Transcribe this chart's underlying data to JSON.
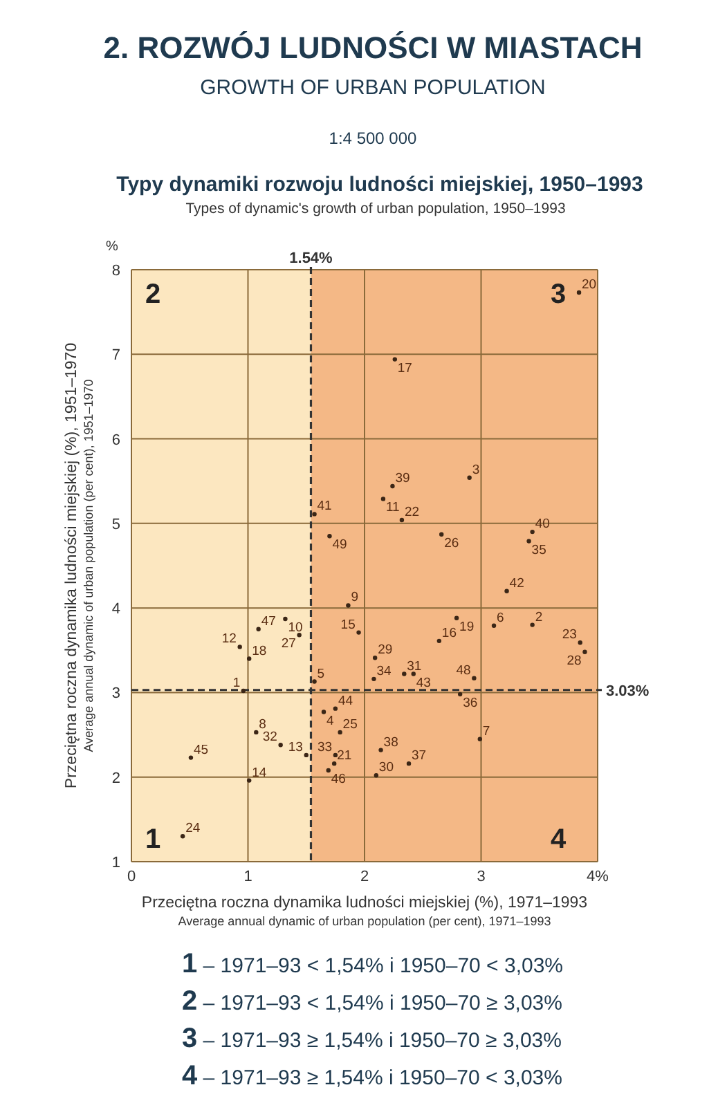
{
  "chart_data": {
    "type": "scatter",
    "title": "2. ROZWÓJ LUDNOŚCI W MIASTACH",
    "subtitle": "GROWTH OF URBAN POPULATION",
    "xlabel": "Przeciętna roczna dynamika ludności miejskiej (%), 1971–1993\nAverage annual dynamic of urban population (per cent), 1971–1993",
    "ylabel": "Przeciętna roczna dynamika ludności miejskiej (%), 1951–1970\nAverage annual dynamic of urban population (per cent), 1951–1970",
    "annotations": [
      "1:4 500 000",
      "Typy dynamiki rozwoju ludności miejskiej, 1950–1993",
      "Types of dynamic's growth of urban population, 1950–1993",
      "%",
      "1 – 1971–93 < 1,54% i 1950–70 < 3,03%",
      "2 – 1971–93 < 1,54% i 1950–70 ≥ 3,03%",
      "3 – 1971–93 ≥ 1,54% i 1950–70 ≥ 3,03%",
      "4 – 1971–93 ≥ 1,54% i 1950–70 < 3,03%",
      "1",
      "2",
      "3",
      "4"
    ],
    "color": "#3b2616",
    "marker": "circle",
    "series": [
      {
        "name": "1",
        "x": [
          0.96
        ],
        "values": [
          3.02
        ]
      },
      {
        "name": "2",
        "x": [
          3.44
        ],
        "values": [
          3.8
        ]
      },
      {
        "name": "3",
        "x": [
          2.9
        ],
        "values": [
          5.54
        ]
      },
      {
        "name": "4",
        "x": [
          1.65
        ],
        "values": [
          2.77
        ]
      },
      {
        "name": "5",
        "x": [
          1.57
        ],
        "values": [
          3.13
        ]
      },
      {
        "name": "6",
        "x": [
          3.11
        ],
        "values": [
          3.79
        ]
      },
      {
        "name": "7",
        "x": [
          2.99
        ],
        "values": [
          2.45
        ]
      },
      {
        "name": "8",
        "x": [
          1.07
        ],
        "values": [
          2.53
        ]
      },
      {
        "name": "9",
        "x": [
          1.86
        ],
        "values": [
          4.03
        ]
      },
      {
        "name": "10",
        "x": [
          1.32
        ],
        "values": [
          3.87
        ]
      },
      {
        "name": "11",
        "x": [
          2.16
        ],
        "values": [
          5.29
        ]
      },
      {
        "name": "12",
        "x": [
          0.93
        ],
        "values": [
          3.54
        ]
      },
      {
        "name": "13",
        "x": [
          1.5
        ],
        "values": [
          2.26
        ]
      },
      {
        "name": "14",
        "x": [
          1.01
        ],
        "values": [
          1.96
        ]
      },
      {
        "name": "15",
        "x": [
          1.95
        ],
        "values": [
          3.71
        ]
      },
      {
        "name": "16",
        "x": [
          2.64
        ],
        "values": [
          3.61
        ]
      },
      {
        "name": "17",
        "x": [
          2.26
        ],
        "values": [
          6.94
        ]
      },
      {
        "name": "18",
        "x": [
          1.01
        ],
        "values": [
          3.4
        ]
      },
      {
        "name": "19",
        "x": [
          2.79
        ],
        "values": [
          3.88
        ]
      },
      {
        "name": "20",
        "x": [
          3.84
        ],
        "values": [
          7.73
        ]
      },
      {
        "name": "21",
        "x": [
          1.74
        ],
        "values": [
          2.16
        ]
      },
      {
        "name": "22",
        "x": [
          2.32
        ],
        "values": [
          5.04
        ]
      },
      {
        "name": "23",
        "x": [
          3.85
        ],
        "values": [
          3.59
        ]
      },
      {
        "name": "24",
        "x": [
          0.44
        ],
        "values": [
          1.3
        ]
      },
      {
        "name": "25",
        "x": [
          1.79
        ],
        "values": [
          2.53
        ]
      },
      {
        "name": "26",
        "x": [
          2.66
        ],
        "values": [
          4.87
        ]
      },
      {
        "name": "27",
        "x": [
          1.44
        ],
        "values": [
          3.68
        ]
      },
      {
        "name": "28",
        "x": [
          3.89
        ],
        "values": [
          3.48
        ]
      },
      {
        "name": "29",
        "x": [
          2.09
        ],
        "values": [
          3.41
        ]
      },
      {
        "name": "30",
        "x": [
          2.1
        ],
        "values": [
          2.02
        ]
      },
      {
        "name": "31",
        "x": [
          2.34
        ],
        "values": [
          3.22
        ]
      },
      {
        "name": "32",
        "x": [
          1.28
        ],
        "values": [
          2.38
        ]
      },
      {
        "name": "33",
        "x": [
          1.75
        ],
        "values": [
          2.26
        ]
      },
      {
        "name": "34",
        "x": [
          2.08
        ],
        "values": [
          3.16
        ]
      },
      {
        "name": "35",
        "x": [
          3.41
        ],
        "values": [
          4.79
        ]
      },
      {
        "name": "36",
        "x": [
          2.82
        ],
        "values": [
          2.98
        ]
      },
      {
        "name": "37",
        "x": [
          2.38
        ],
        "values": [
          2.16
        ]
      },
      {
        "name": "38",
        "x": [
          2.14
        ],
        "values": [
          2.32
        ]
      },
      {
        "name": "39",
        "x": [
          2.24
        ],
        "values": [
          5.44
        ]
      },
      {
        "name": "40",
        "x": [
          3.44
        ],
        "values": [
          4.9
        ]
      },
      {
        "name": "41",
        "x": [
          1.57
        ],
        "values": [
          5.11
        ]
      },
      {
        "name": "42",
        "x": [
          3.22
        ],
        "values": [
          4.2
        ]
      },
      {
        "name": "43",
        "x": [
          2.42
        ],
        "values": [
          3.22
        ]
      },
      {
        "name": "44",
        "x": [
          1.75
        ],
        "values": [
          2.81
        ]
      },
      {
        "name": "45",
        "x": [
          0.51
        ],
        "values": [
          2.23
        ]
      },
      {
        "name": "46",
        "x": [
          1.69
        ],
        "values": [
          2.08
        ]
      },
      {
        "name": "47",
        "x": [
          1.09
        ],
        "values": [
          3.75
        ]
      },
      {
        "name": "48",
        "x": [
          2.94
        ],
        "values": [
          3.17
        ]
      },
      {
        "name": "49",
        "x": [
          1.7
        ],
        "values": [
          4.85
        ]
      }
    ],
    "xlim": [
      0,
      4
    ],
    "xticks": [
      0,
      1,
      2,
      3,
      {
        "value": 4,
        "label": "4%"
      }
    ],
    "ylim": [
      1,
      8
    ],
    "yticks": [
      1,
      2,
      3,
      4,
      5,
      6,
      7,
      8
    ],
    "grid": true,
    "bands": [
      {
        "axis": "x",
        "from": 0,
        "to": 1.54,
        "color": "#fce7c0"
      },
      {
        "axis": "x",
        "from": 1.54,
        "to": 4,
        "color": "#f4b886"
      }
    ],
    "ref_lines": [
      {
        "axis": "x",
        "value": 1.54,
        "label": "1.54%",
        "line_style": "dashed"
      },
      {
        "axis": "y",
        "value": 3.03,
        "label": "3.03%",
        "line_style": "dashed"
      }
    ]
  }
}
